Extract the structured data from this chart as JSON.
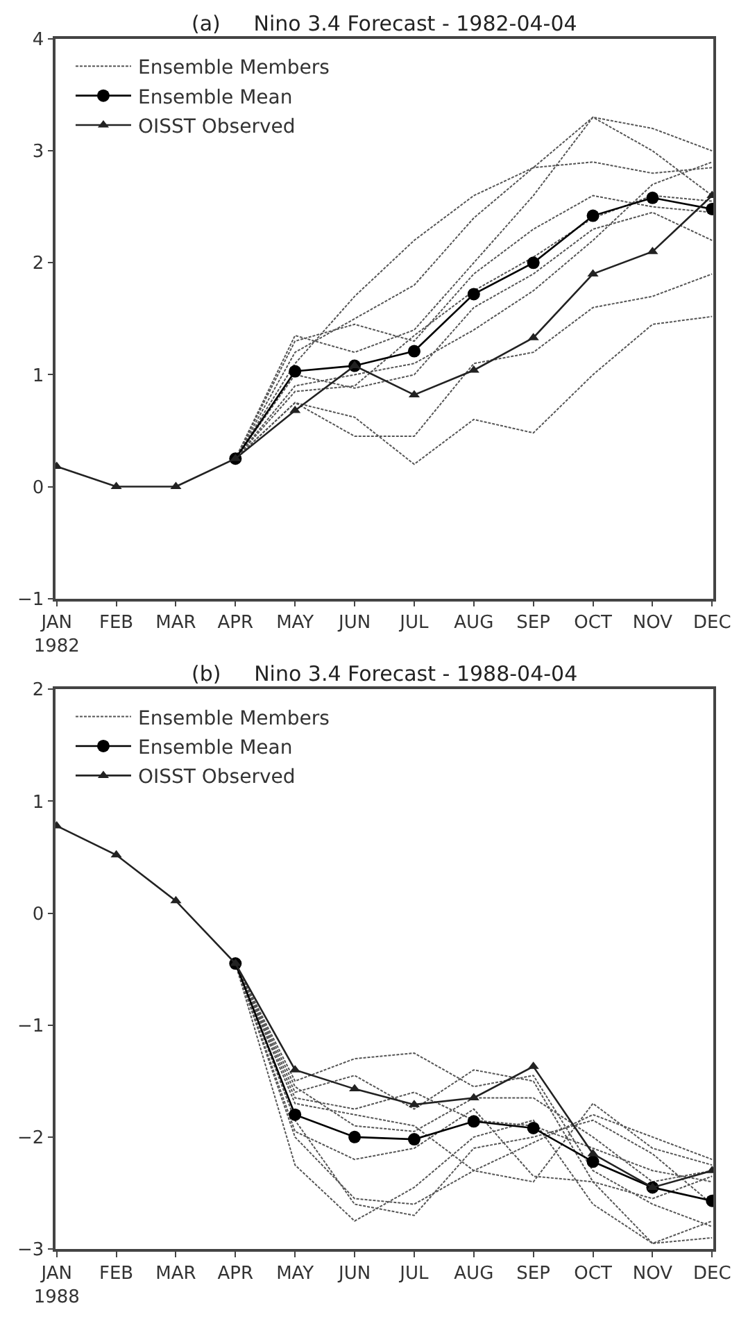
{
  "chart_data": [
    {
      "type": "line",
      "title": "(a)     Nino 3.4 Forecast - 1982-04-04",
      "categories": [
        "JAN\n1982",
        "FEB",
        "MAR",
        "APR",
        "MAY",
        "JUN",
        "JUL",
        "AUG",
        "SEP",
        "OCT",
        "NOV",
        "DEC"
      ],
      "ylim": [
        -1,
        4
      ],
      "yticks": [
        -1,
        0,
        1,
        2,
        3,
        4
      ],
      "legend": "top left",
      "series": [
        {
          "name": "Ensemble Members",
          "color": "#555555",
          "line_style": "dotted",
          "marker": "none",
          "values": [
            null,
            null,
            null,
            0.25,
            1.35,
            1.2,
            1.4,
            2.0,
            2.6,
            3.3,
            3.2,
            3.0
          ]
        },
        {
          "color": "#555555",
          "line_style": "dotted",
          "marker": "none",
          "values": [
            null,
            null,
            null,
            0.25,
            1.1,
            1.7,
            2.2,
            2.6,
            2.85,
            3.3,
            3.0,
            2.6
          ]
        },
        {
          "color": "#555555",
          "line_style": "dotted",
          "marker": "none",
          "values": [
            null,
            null,
            null,
            0.25,
            1.2,
            1.5,
            1.8,
            2.4,
            2.85,
            2.9,
            2.8,
            2.85
          ]
        },
        {
          "color": "#555555",
          "line_style": "dotted",
          "marker": "none",
          "values": [
            null,
            null,
            null,
            0.25,
            0.75,
            0.62,
            0.2,
            0.6,
            0.48,
            1.0,
            1.45,
            1.52
          ]
        },
        {
          "color": "#555555",
          "line_style": "dotted",
          "marker": "none",
          "values": [
            null,
            null,
            null,
            0.25,
            0.75,
            0.45,
            0.45,
            1.1,
            1.2,
            1.6,
            1.7,
            1.9
          ]
        },
        {
          "color": "#555555",
          "line_style": "dotted",
          "marker": "none",
          "values": [
            null,
            null,
            null,
            0.25,
            0.85,
            0.9,
            1.35,
            1.75,
            2.05,
            2.4,
            2.6,
            2.55
          ]
        },
        {
          "color": "#555555",
          "line_style": "dotted",
          "marker": "none",
          "values": [
            null,
            null,
            null,
            0.25,
            0.9,
            1.0,
            1.1,
            1.4,
            1.75,
            2.2,
            2.7,
            2.9
          ]
        },
        {
          "color": "#555555",
          "line_style": "dotted",
          "marker": "none",
          "values": [
            null,
            null,
            null,
            0.25,
            1.3,
            1.45,
            1.3,
            1.9,
            2.3,
            2.6,
            2.5,
            2.45
          ]
        },
        {
          "color": "#555555",
          "line_style": "dotted",
          "marker": "none",
          "values": [
            null,
            null,
            null,
            0.25,
            1.0,
            0.88,
            1.0,
            1.6,
            1.9,
            2.3,
            2.45,
            2.2
          ]
        },
        {
          "name": "Ensemble Mean",
          "color": "#000000",
          "line_style": "solid",
          "marker": "circle",
          "values": [
            null,
            null,
            null,
            0.25,
            1.03,
            1.08,
            1.21,
            1.72,
            2.0,
            2.42,
            2.58,
            2.48
          ]
        },
        {
          "name": "OISST Observed",
          "color": "#222222",
          "line_style": "solid",
          "marker": "triangle",
          "values": [
            0.18,
            0.0,
            0.0,
            0.25,
            0.68,
            1.08,
            0.82,
            1.04,
            1.33,
            1.9,
            2.1,
            2.6
          ]
        }
      ]
    },
    {
      "type": "line",
      "title": "(b)     Nino 3.4 Forecast - 1988-04-04",
      "categories": [
        "JAN\n1988",
        "FEB",
        "MAR",
        "APR",
        "MAY",
        "JUN",
        "JUL",
        "AUG",
        "SEP",
        "OCT",
        "NOV",
        "DEC"
      ],
      "ylim": [
        -3,
        2
      ],
      "yticks": [
        -3,
        -2,
        -1,
        0,
        1,
        2
      ],
      "legend": "top left",
      "series": [
        {
          "name": "Ensemble Members",
          "color": "#555555",
          "line_style": "dotted",
          "marker": "none",
          "values": [
            null,
            null,
            null,
            -0.45,
            -1.5,
            -1.3,
            -1.25,
            -1.55,
            -1.45,
            -2.3,
            -2.6,
            -2.8
          ]
        },
        {
          "color": "#555555",
          "line_style": "dotted",
          "marker": "none",
          "values": [
            null,
            null,
            null,
            -0.45,
            -1.6,
            -1.45,
            -1.75,
            -1.4,
            -1.5,
            -2.4,
            -2.95,
            -2.75
          ]
        },
        {
          "color": "#555555",
          "line_style": "dotted",
          "marker": "none",
          "values": [
            null,
            null,
            null,
            -0.45,
            -1.7,
            -1.8,
            -1.9,
            -2.3,
            -2.4,
            -1.7,
            -2.1,
            -2.25
          ]
        },
        {
          "color": "#555555",
          "line_style": "dotted",
          "marker": "none",
          "values": [
            null,
            null,
            null,
            -0.45,
            -2.0,
            -2.55,
            -2.6,
            -2.3,
            -2.05,
            -1.8,
            -2.0,
            -2.2
          ]
        },
        {
          "color": "#555555",
          "line_style": "dotted",
          "marker": "none",
          "values": [
            null,
            null,
            null,
            -0.45,
            -2.25,
            -2.75,
            -2.45,
            -2.0,
            -1.85,
            -2.6,
            -2.95,
            -2.9
          ]
        },
        {
          "color": "#555555",
          "line_style": "dotted",
          "marker": "none",
          "values": [
            null,
            null,
            null,
            -0.45,
            -1.95,
            -2.2,
            -2.1,
            -1.75,
            -2.35,
            -2.4,
            -2.55,
            -2.35
          ]
        },
        {
          "color": "#555555",
          "line_style": "dotted",
          "marker": "none",
          "values": [
            null,
            null,
            null,
            -0.45,
            -1.65,
            -1.75,
            -1.6,
            -1.85,
            -1.9,
            -2.1,
            -2.3,
            -2.4
          ]
        },
        {
          "color": "#555555",
          "line_style": "dotted",
          "marker": "none",
          "values": [
            null,
            null,
            null,
            -0.45,
            -1.85,
            -2.6,
            -2.7,
            -2.1,
            -2.0,
            -1.85,
            -2.15,
            -2.6
          ]
        },
        {
          "color": "#555555",
          "line_style": "dotted",
          "marker": "none",
          "values": [
            null,
            null,
            null,
            -0.45,
            -1.55,
            -1.9,
            -1.95,
            -1.65,
            -1.65,
            -2.0,
            -2.4,
            -2.3
          ]
        },
        {
          "name": "Ensemble Mean",
          "color": "#000000",
          "line_style": "solid",
          "marker": "circle",
          "values": [
            null,
            null,
            null,
            -0.45,
            -1.8,
            -2.0,
            -2.02,
            -1.86,
            -1.92,
            -2.22,
            -2.45,
            -2.57
          ]
        },
        {
          "name": "OISST Observed",
          "color": "#222222",
          "line_style": "solid",
          "marker": "triangle",
          "values": [
            0.78,
            0.52,
            0.11,
            -0.45,
            -1.4,
            -1.57,
            -1.71,
            -1.65,
            -1.37,
            -2.15,
            -2.45,
            -2.3
          ]
        }
      ]
    }
  ]
}
